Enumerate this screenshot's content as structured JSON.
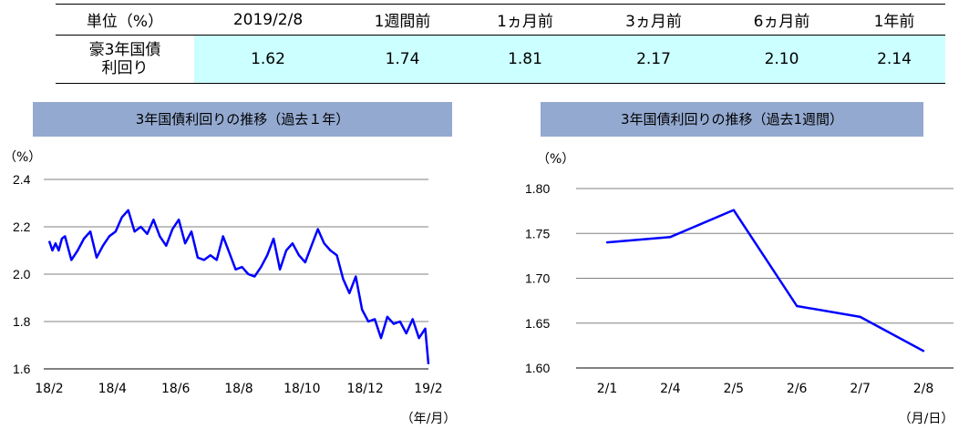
{
  "summary_table": {
    "unit_label": "単位（%）",
    "columns": [
      "2019/2/8",
      "1週間前",
      "1ヵ月前",
      "3ヵ月前",
      "6ヵ月前",
      "1年前"
    ],
    "row_label_line1": "豪3年国債",
    "row_label_line2": "利回り",
    "values": [
      "1.62",
      "1.74",
      "1.81",
      "2.17",
      "2.10",
      "2.14"
    ]
  },
  "chart_data": [
    {
      "type": "line",
      "title": "3年国債利回りの推移（過去１年）",
      "ylabel": "（%）",
      "xlabel": "（年/月）",
      "ylim": [
        1.6,
        2.4
      ],
      "yticks": [
        "2.4",
        "2.2",
        "2.0",
        "1.8",
        "1.6"
      ],
      "xticks": [
        "18/2",
        "18/4",
        "18/6",
        "18/8",
        "18/10",
        "18/12",
        "19/2"
      ],
      "color": "#0000ff",
      "series": [
        {
          "x": [
            0.0,
            0.1,
            0.2,
            0.3,
            0.4,
            0.5,
            0.7,
            0.9,
            1.1,
            1.3,
            1.5,
            1.7,
            1.9,
            2.1,
            2.3,
            2.5,
            2.7,
            2.9,
            3.1,
            3.3,
            3.5,
            3.7,
            3.9,
            4.1,
            4.3,
            4.5,
            4.7,
            4.9,
            5.1,
            5.3,
            5.5,
            5.7,
            5.9,
            6.1,
            6.3,
            6.5,
            6.7,
            6.9,
            7.1,
            7.3,
            7.5,
            7.7,
            7.9,
            8.1,
            8.3,
            8.5,
            8.7,
            8.9,
            9.1,
            9.3,
            9.5,
            9.7,
            9.9,
            10.1,
            10.3,
            10.5,
            10.7,
            10.9,
            11.1,
            11.3,
            11.5,
            11.7,
            11.9,
            12.0
          ],
          "values": [
            2.14,
            2.1,
            2.13,
            2.1,
            2.15,
            2.16,
            2.06,
            2.1,
            2.15,
            2.18,
            2.07,
            2.12,
            2.16,
            2.18,
            2.24,
            2.27,
            2.18,
            2.2,
            2.17,
            2.23,
            2.16,
            2.12,
            2.19,
            2.23,
            2.13,
            2.18,
            2.07,
            2.06,
            2.08,
            2.06,
            2.16,
            2.09,
            2.02,
            2.03,
            2.0,
            1.99,
            2.03,
            2.08,
            2.15,
            2.02,
            2.1,
            2.13,
            2.08,
            2.05,
            2.12,
            2.19,
            2.13,
            2.1,
            2.08,
            1.98,
            1.92,
            1.99,
            1.85,
            1.8,
            1.81,
            1.73,
            1.82,
            1.79,
            1.8,
            1.75,
            1.81,
            1.73,
            1.77,
            1.62
          ]
        }
      ]
    },
    {
      "type": "line",
      "title": "3年国債利回りの推移（過去1週間）",
      "ylabel": "（%）",
      "xlabel": "（月/日）",
      "ylim": [
        1.6,
        1.8
      ],
      "yticks": [
        "1.80",
        "1.75",
        "1.70",
        "1.65",
        "1.60"
      ],
      "categories": [
        "2/1",
        "2/4",
        "2/5",
        "2/6",
        "2/7",
        "2/8"
      ],
      "color": "#0000ff",
      "series": [
        {
          "values": [
            1.74,
            1.746,
            1.776,
            1.669,
            1.657,
            1.619
          ]
        }
      ]
    }
  ]
}
